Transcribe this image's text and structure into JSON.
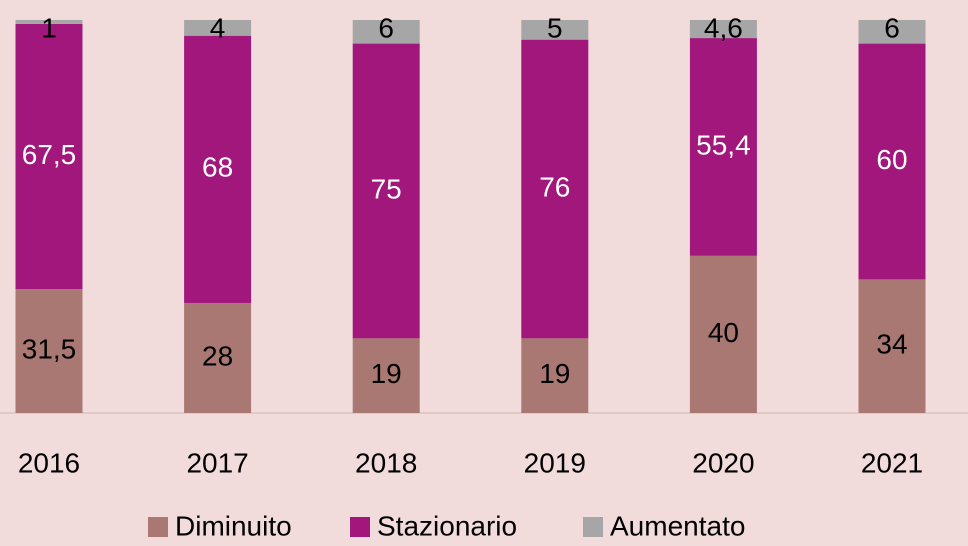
{
  "chart_data": {
    "type": "stacked_bar",
    "categories": [
      "2016",
      "2017",
      "2018",
      "2019",
      "2020",
      "2021"
    ],
    "series": [
      {
        "name": "Diminuito",
        "color": "#a97872",
        "values": [
          31.5,
          28,
          19,
          19,
          40,
          34
        ],
        "value_labels": [
          "31,5",
          "28",
          "19",
          "19",
          "40",
          "34"
        ]
      },
      {
        "name": "Stazionario",
        "color": "#a2177c",
        "values": [
          67.5,
          68,
          75,
          76,
          55.4,
          60
        ],
        "value_labels": [
          "67,5",
          "68",
          "75",
          "76",
          "55,4",
          "60"
        ]
      },
      {
        "name": "Aumentato",
        "color": "#a6a6a6",
        "values": [
          1,
          4,
          6,
          5,
          4.6,
          6
        ],
        "value_labels": [
          "1",
          "4",
          "6",
          "5",
          "4,6",
          "6"
        ]
      }
    ],
    "ylim": [
      0,
      100
    ]
  }
}
